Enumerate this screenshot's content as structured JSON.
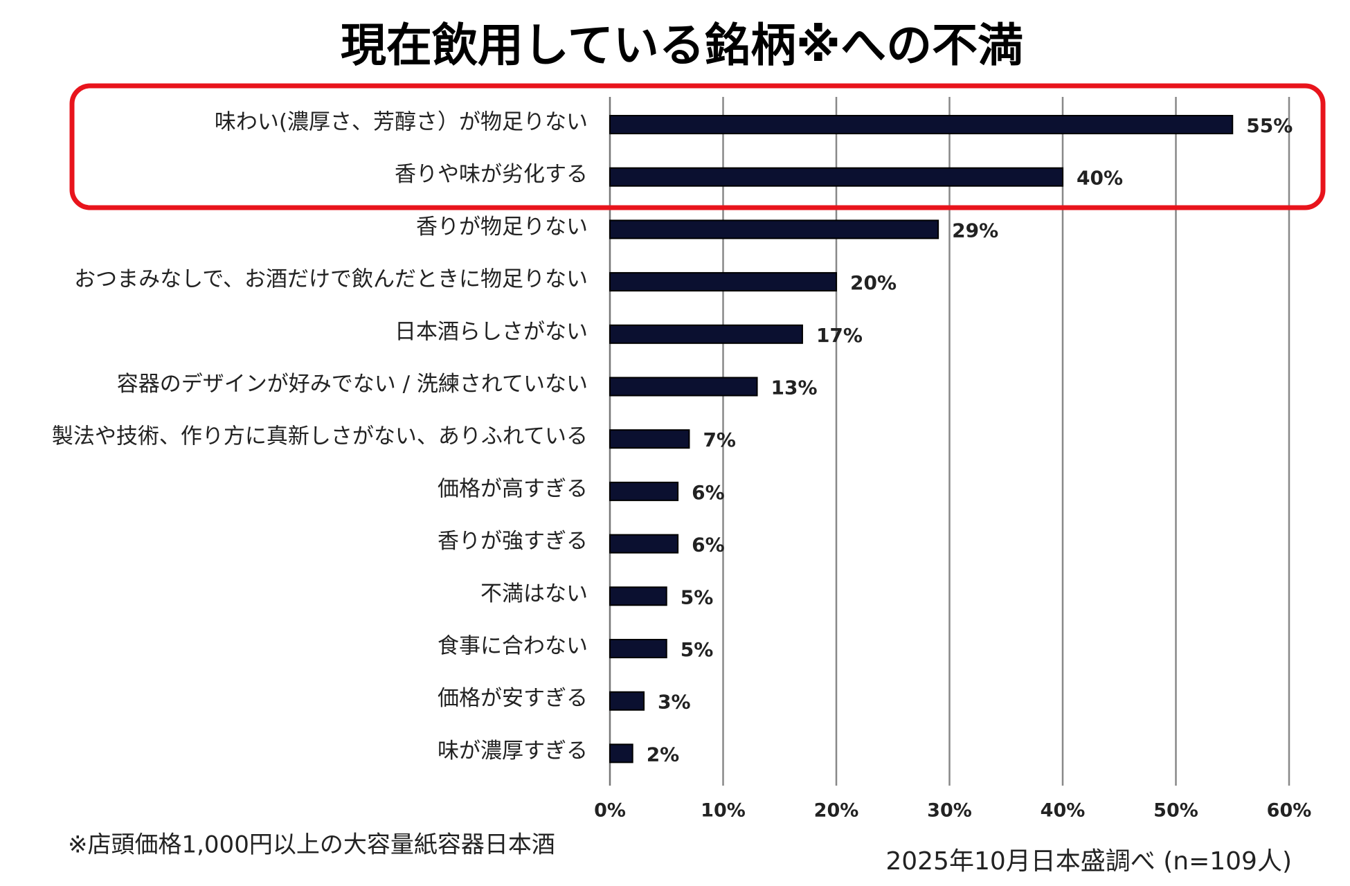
{
  "chart_data": {
    "type": "bar",
    "orientation": "horizontal",
    "title": "現在飲用している銘柄※への不満",
    "categories": [
      "味わい(濃厚さ、芳醇さ）が物足りない",
      "香りや味が劣化する",
      "香りが物足りない",
      "おつまみなしで、お酒だけで飲んだときに物足りない",
      "日本酒らしさがない",
      "容器のデザインが好みでない / 洗練されていない",
      "製法や技術、作り方に真新しさがない、ありふれている",
      "価格が高すぎる",
      "香りが強すぎる",
      "不満はない",
      "食事に合わない",
      "価格が安すぎる",
      "味が濃厚すぎる"
    ],
    "values": [
      55,
      40,
      29,
      20,
      17,
      13,
      7,
      6,
      6,
      5,
      5,
      3,
      2
    ],
    "value_labels": [
      "55%",
      "40%",
      "29%",
      "20%",
      "17%",
      "13%",
      "7%",
      "6%",
      "6%",
      "5%",
      "5%",
      "3%",
      "2%"
    ],
    "color": "#0b1030",
    "xlim": [
      0,
      60
    ],
    "xticks": [
      {
        "value": 0,
        "label": "0%"
      },
      {
        "value": 10,
        "label": "10%"
      },
      {
        "value": 20,
        "label": "20%"
      },
      {
        "value": 30,
        "label": "30%"
      },
      {
        "value": 40,
        "label": "40%"
      },
      {
        "value": 50,
        "label": "50%"
      },
      {
        "value": 60,
        "label": "60%"
      }
    ],
    "grid": true,
    "footnote": "※店頭価格1,000円以上の大容量紙容器日本酒",
    "source": "2025年10月日本盛調べ (n=109人)"
  }
}
